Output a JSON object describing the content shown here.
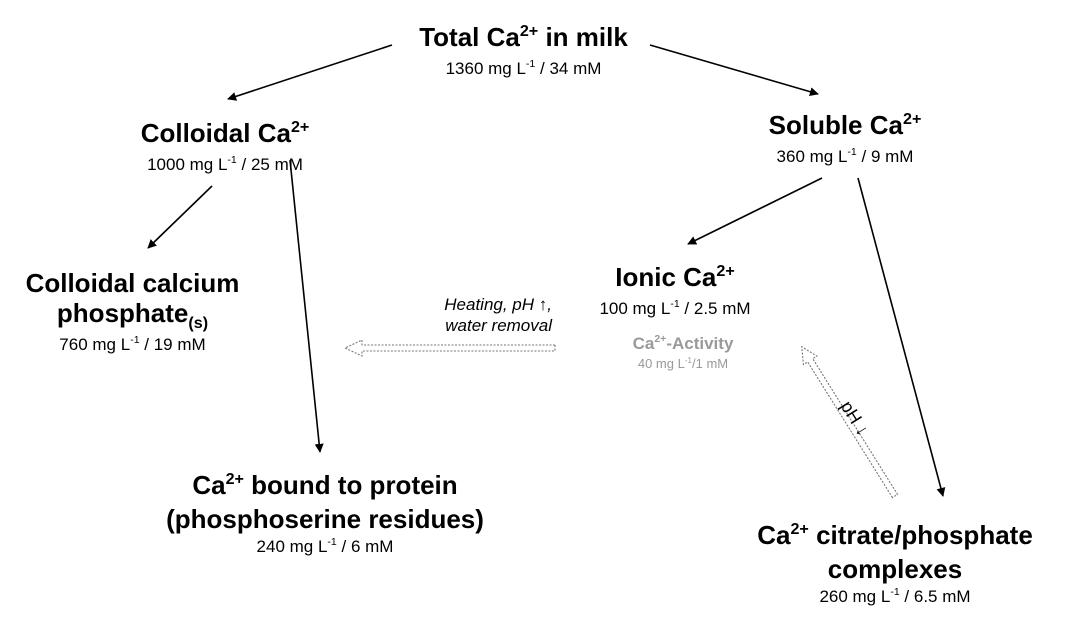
{
  "nodes": {
    "total": {
      "title_pre": "Total Ca",
      "title_sup": "2+",
      "title_post": " in milk",
      "value_pre": "1360 mg L",
      "value_sup": "-1",
      "value_post": " / 34 mM"
    },
    "colloidal": {
      "title_pre": "Colloidal Ca",
      "title_sup": "2+",
      "value_pre": "1000 mg L",
      "value_sup": "-1",
      "value_post": " / 25 mM"
    },
    "soluble": {
      "title_pre": "Soluble Ca",
      "title_sup": "2+",
      "value_pre": "360 mg L",
      "value_sup": "-1",
      "value_post": " / 9 mM"
    },
    "ccp": {
      "title_line1": "Colloidal calcium",
      "title_line2": "phosphate",
      "title_sub": "(s)",
      "value_pre": "760 mg L",
      "value_sup": "-1",
      "value_post": " / 19 mM"
    },
    "ionic": {
      "title_pre": "Ionic Ca",
      "title_sup": "2+",
      "value_pre": "100 mg L",
      "value_sup": "-1",
      "value_post": " / 2.5 mM"
    },
    "activity": {
      "title_pre": "Ca",
      "title_sup": "2+",
      "title_post": "-Activity",
      "value_pre": "40 mg L",
      "value_sup": "-1",
      "value_post": "/1 mM"
    },
    "protein": {
      "title_pre": "Ca",
      "title_sup": "2+",
      "title_post": " bound to protein",
      "title_line2": "(phosphoserine residues)",
      "value_pre": "240 mg L",
      "value_sup": "-1",
      "value_post": " / 6 mM"
    },
    "complexes": {
      "title_pre": "Ca",
      "title_sup": "2+",
      "title_post": " citrate/phosphate",
      "title_line2": "complexes",
      "value_pre": "260 mg L",
      "value_sup": "-1",
      "value_post": " / 6.5 mM"
    }
  },
  "conditions": {
    "heating_line1": "Heating, pH ↑,",
    "heating_line2": "water removal",
    "ph_down": "pH ↓"
  },
  "colors": {
    "arrow": "#000000",
    "dashed_arrow": "#888888",
    "activity_text": "#9a9a9a"
  }
}
